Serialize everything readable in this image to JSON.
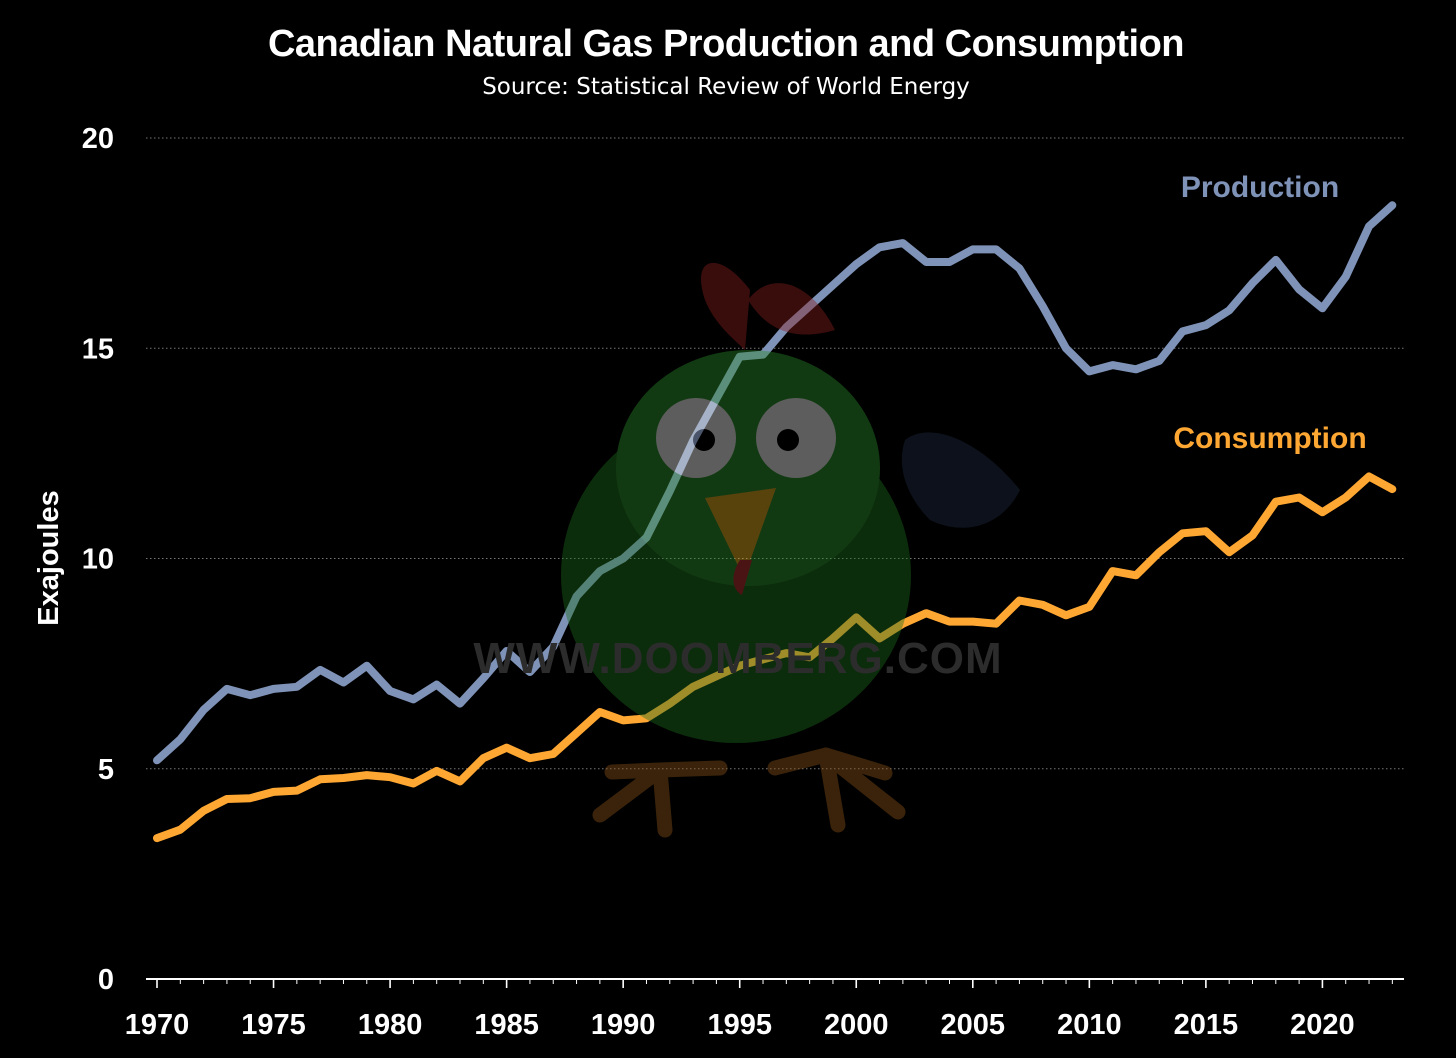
{
  "chart_data": {
    "type": "line",
    "title": "Canadian Natural Gas Production and Consumption",
    "subtitle": "Source: Statistical Review of World Energy",
    "ylabel": "Exajoules",
    "xlim": [
      1970,
      2023
    ],
    "ylim": [
      0,
      20
    ],
    "x_ticks": [
      1970,
      1975,
      1980,
      1985,
      1990,
      1995,
      2000,
      2005,
      2010,
      2015,
      2020
    ],
    "y_ticks": [
      0,
      5,
      10,
      15,
      20
    ],
    "grid": "horizontal dotted",
    "legend": "inline labels at line ends",
    "watermark": "WWW.DOOMBERG.COM",
    "x": [
      1970,
      1971,
      1972,
      1973,
      1974,
      1975,
      1976,
      1977,
      1978,
      1979,
      1980,
      1981,
      1982,
      1983,
      1984,
      1985,
      1986,
      1987,
      1988,
      1989,
      1990,
      1991,
      1992,
      1993,
      1994,
      1995,
      1996,
      1997,
      1998,
      1999,
      2000,
      2001,
      2002,
      2003,
      2004,
      2005,
      2006,
      2007,
      2008,
      2009,
      2010,
      2011,
      2012,
      2013,
      2014,
      2015,
      2016,
      2017,
      2018,
      2019,
      2020,
      2021,
      2022,
      2023
    ],
    "series": [
      {
        "name": "Production",
        "color": "#7f93b8",
        "values": [
          5.2,
          5.7,
          6.4,
          6.9,
          6.75,
          6.9,
          6.95,
          7.35,
          7.05,
          7.45,
          6.85,
          6.65,
          7.0,
          6.55,
          7.15,
          7.8,
          7.3,
          7.9,
          9.1,
          9.7,
          10.0,
          10.5,
          11.6,
          12.8,
          13.8,
          14.8,
          14.85,
          15.5,
          16.0,
          16.5,
          17.0,
          17.4,
          17.5,
          17.05,
          17.05,
          17.35,
          17.35,
          16.9,
          16.0,
          15.0,
          14.45,
          14.6,
          14.5,
          14.7,
          15.4,
          15.55,
          15.9,
          16.55,
          17.1,
          16.4,
          15.95,
          16.7,
          17.9,
          18.4
        ]
      },
      {
        "name": "Consumption",
        "color": "#ffa733",
        "values": [
          3.35,
          3.55,
          4.0,
          4.28,
          4.3,
          4.45,
          4.48,
          4.75,
          4.78,
          4.85,
          4.8,
          4.65,
          4.95,
          4.7,
          5.25,
          5.5,
          5.25,
          5.35,
          5.85,
          6.35,
          6.15,
          6.2,
          6.55,
          6.95,
          7.2,
          7.45,
          7.6,
          7.75,
          7.65,
          8.1,
          8.6,
          8.1,
          8.45,
          8.7,
          8.5,
          8.5,
          8.45,
          9.0,
          8.9,
          8.65,
          8.85,
          9.7,
          9.6,
          10.15,
          10.6,
          10.65,
          10.15,
          10.55,
          11.35,
          11.45,
          11.1,
          11.45,
          11.95,
          11.65
        ]
      }
    ]
  }
}
